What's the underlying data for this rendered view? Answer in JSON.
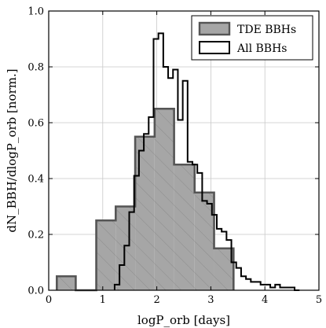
{
  "chart_data": {
    "type": "histogram",
    "title": "",
    "xlabel": "logP_orb [days]",
    "ylabel": "dN_BBH/dlogP_orb [norm.]",
    "xlim": [
      0,
      5
    ],
    "ylim": [
      0,
      1.0
    ],
    "xticks": [
      "0",
      "1",
      "2",
      "3",
      "4",
      "5"
    ],
    "yticks": [
      "0.0",
      "0.2",
      "0.4",
      "0.6",
      "0.8",
      "1.0"
    ],
    "grid": true,
    "legend_position": "top-right",
    "series": [
      {
        "name": "TDE BBHs",
        "style": "filled-hatched",
        "fill": "#a6a6a6",
        "edge": "#555555",
        "bins": [
          {
            "x0": 0.15,
            "x1": 0.5,
            "y": 0.05
          },
          {
            "x0": 0.5,
            "x1": 0.88,
            "y": 0.0
          },
          {
            "x0": 0.88,
            "x1": 1.24,
            "y": 0.25
          },
          {
            "x0": 1.24,
            "x1": 1.6,
            "y": 0.3
          },
          {
            "x0": 1.6,
            "x1": 1.96,
            "y": 0.55
          },
          {
            "x0": 1.96,
            "x1": 2.32,
            "y": 0.65
          },
          {
            "x0": 2.32,
            "x1": 2.7,
            "y": 0.45
          },
          {
            "x0": 2.7,
            "x1": 3.06,
            "y": 0.35
          },
          {
            "x0": 3.06,
            "x1": 3.42,
            "y": 0.15
          }
        ]
      },
      {
        "name": "All BBHs",
        "style": "step",
        "color": "#000000",
        "edges": [
          1.22,
          1.31,
          1.4,
          1.49,
          1.58,
          1.67,
          1.76,
          1.85,
          1.94,
          2.03,
          2.12,
          2.21,
          2.3,
          2.39,
          2.48,
          2.57,
          2.66,
          2.75,
          2.84,
          2.93,
          3.02,
          3.11,
          3.2,
          3.29,
          3.38,
          3.47,
          3.56,
          3.65,
          3.74,
          3.83,
          3.92,
          4.01,
          4.1,
          4.19,
          4.28,
          4.37,
          4.46,
          4.55,
          4.64
        ],
        "values": [
          0.02,
          0.09,
          0.16,
          0.28,
          0.41,
          0.5,
          0.56,
          0.62,
          0.9,
          0.92,
          0.8,
          0.76,
          0.79,
          0.61,
          0.75,
          0.46,
          0.45,
          0.42,
          0.32,
          0.31,
          0.27,
          0.22,
          0.21,
          0.18,
          0.1,
          0.08,
          0.05,
          0.04,
          0.03,
          0.03,
          0.02,
          0.02,
          0.01,
          0.02,
          0.01,
          0.01,
          0.01,
          0.0
        ]
      }
    ]
  }
}
